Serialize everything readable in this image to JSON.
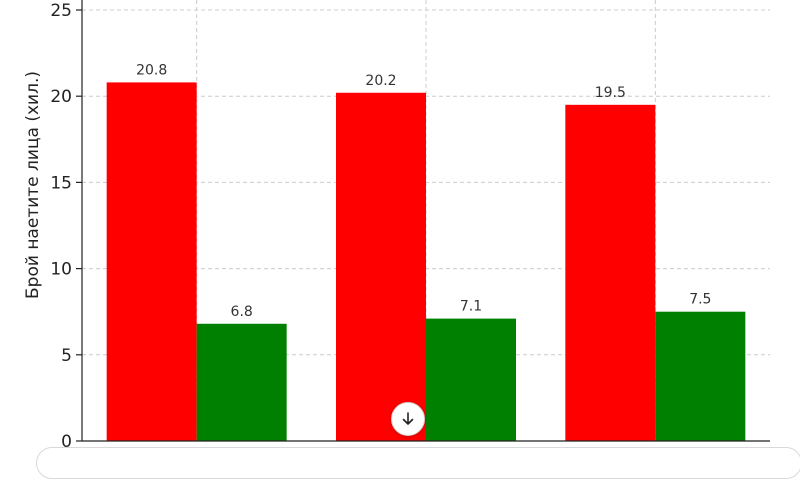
{
  "chart_data": {
    "type": "bar",
    "categories": [
      "",
      "",
      ""
    ],
    "series": [
      {
        "values": [
          20.8,
          20.2,
          19.5
        ],
        "color": "#ff0000"
      },
      {
        "values": [
          6.8,
          7.1,
          7.5
        ],
        "color": "#008000"
      }
    ],
    "data_labels": [
      [
        "20.8",
        "20.2",
        "19.5"
      ],
      [
        "6.8",
        "7.1",
        "7.5"
      ]
    ],
    "ylabel": "Брой наетите лица (хил.)",
    "ylim": [
      0,
      25
    ],
    "yticks": [
      0,
      5,
      10,
      15,
      20,
      25
    ],
    "ytick_labels": [
      "0",
      "5",
      "10",
      "15",
      "20",
      "25"
    ],
    "grid": true
  },
  "ui": {
    "scroll_button_icon": "arrow-down-icon"
  }
}
